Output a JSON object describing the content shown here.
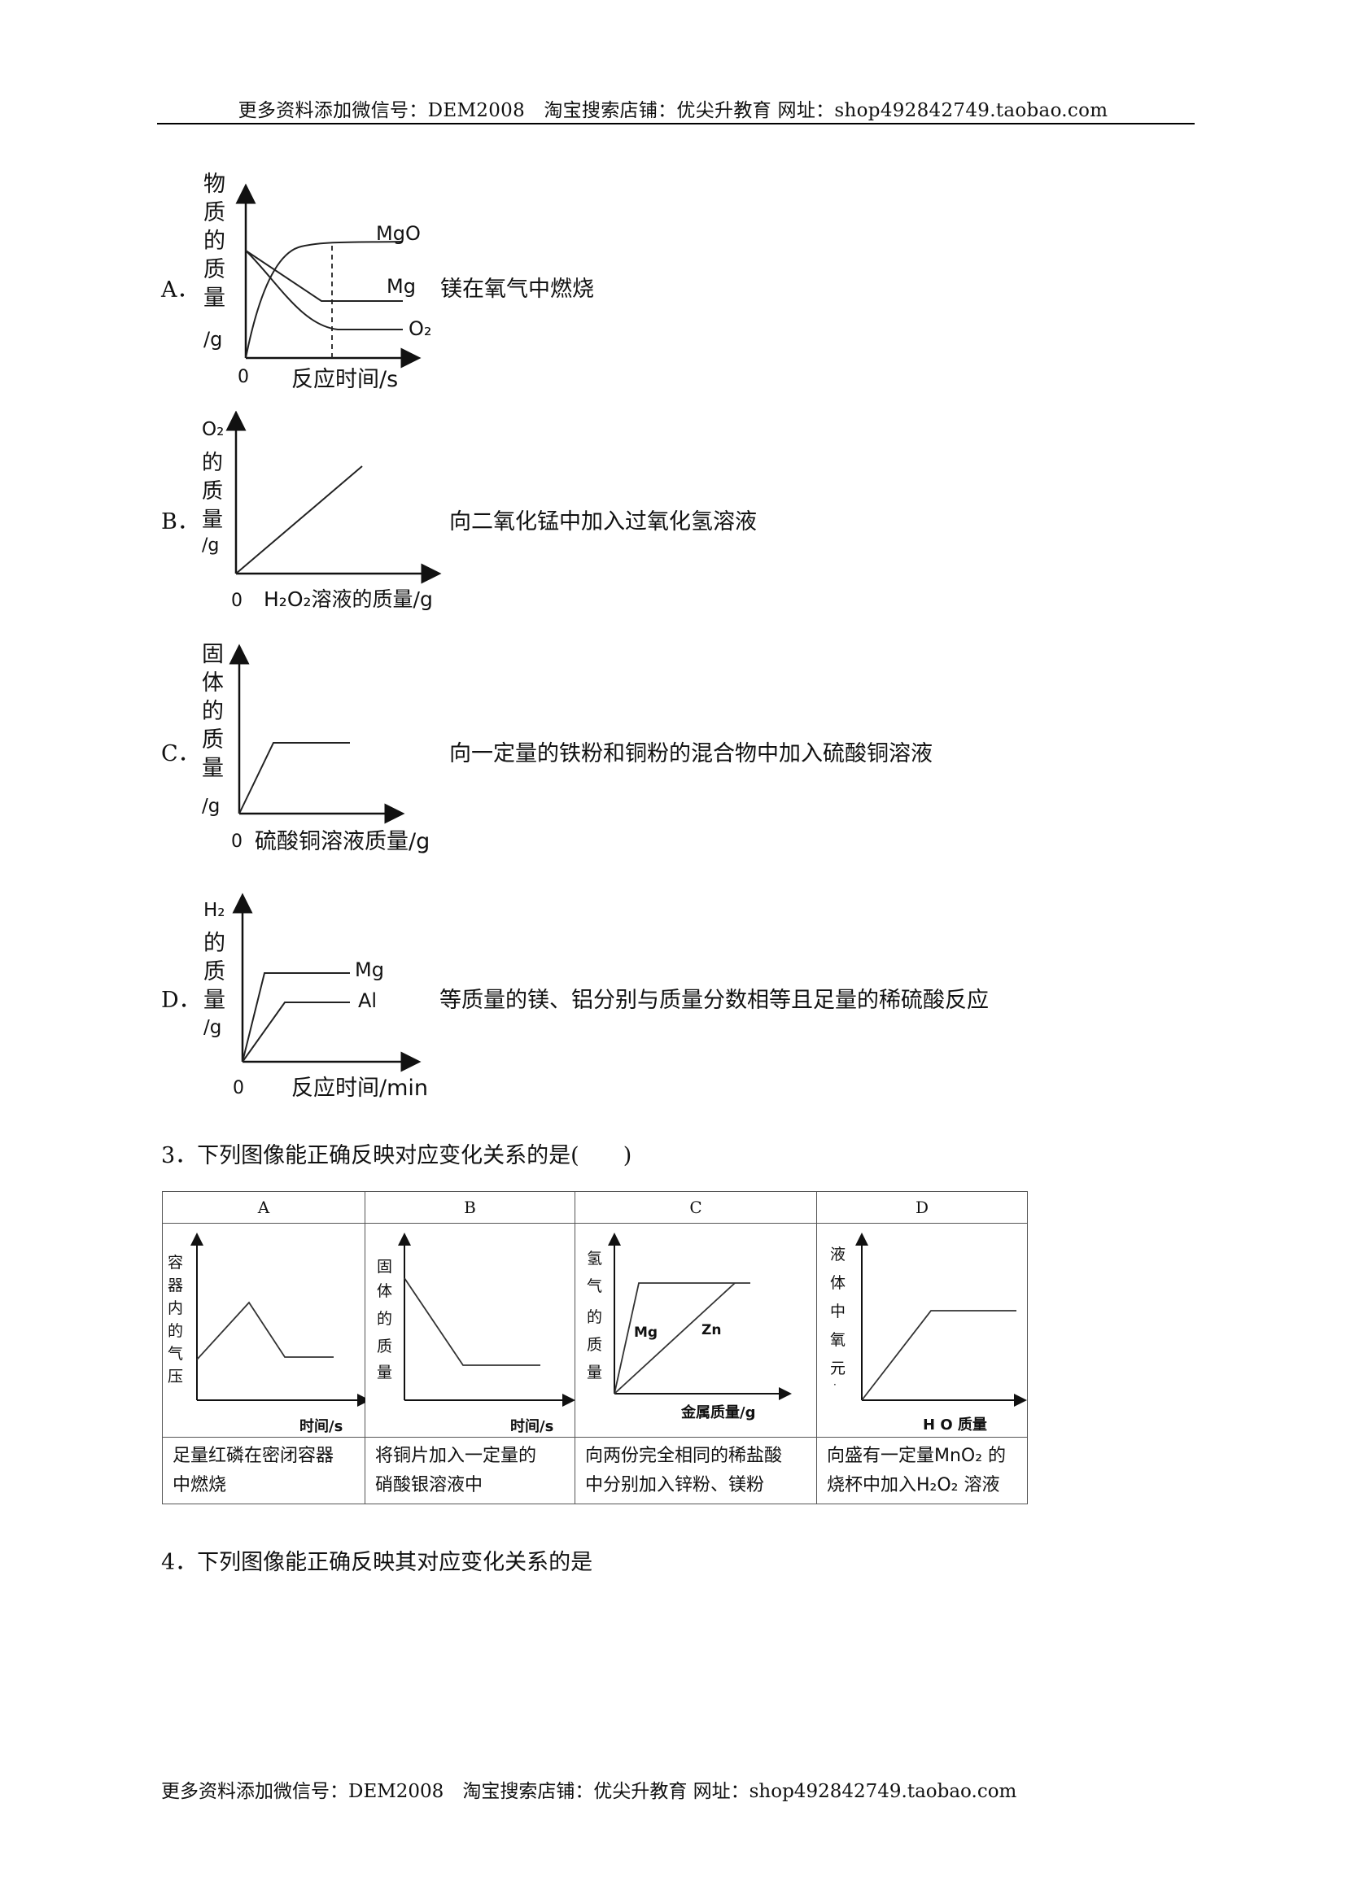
{
  "header": {
    "text": "更多资料添加微信号：DEM2008　淘宝搜索店铺：优尖升教育  网址：shop492842749.taobao.com"
  },
  "footer": {
    "text": "更多资料添加微信号：DEM2008　淘宝搜索店铺：优尖升教育  网址：shop492842749.taobao.com"
  },
  "options": [
    {
      "label": "A．",
      "desc": "镁在氧气中燃烧",
      "graph": {
        "ylabel": [
          "物",
          "质",
          "的",
          "质",
          "量",
          "/g"
        ],
        "xlabel": "反应时间/s",
        "origin": "0",
        "curves": [
          "MgO",
          "Mg",
          "O₂"
        ]
      }
    },
    {
      "label": "B．",
      "desc": "向二氧化锰中加入过氧化氢溶液",
      "graph": {
        "ylabel": [
          "O₂",
          "的",
          "质",
          "量",
          "/g"
        ],
        "xlabel": "H₂O₂溶液的质量/g",
        "origin": "0"
      }
    },
    {
      "label": "C．",
      "desc": "向一定量的铁粉和铜粉的混合物中加入硫酸铜溶液",
      "graph": {
        "ylabel": [
          "固",
          "体",
          "的",
          "质",
          "量",
          "/g"
        ],
        "xlabel": "硫酸铜溶液质量/g",
        "origin": "0"
      }
    },
    {
      "label": "D．",
      "desc": "等质量的镁、铝分别与质量分数相等且足量的稀硫酸反应",
      "graph": {
        "ylabel": [
          "H₂",
          "的",
          "质",
          "量",
          "/g"
        ],
        "xlabel": "反应时间/min",
        "origin": "0",
        "curves": [
          "Mg",
          "Al"
        ]
      }
    }
  ],
  "q3": {
    "text": "3．下列图像能正确反映对应变化关系的是(　　)",
    "cells": [
      {
        "head": "A",
        "ylabel": [
          "容",
          "器",
          "内",
          "的",
          "气",
          "压"
        ],
        "xlabel": "时间/s",
        "caption1": "足量红磷在密闭容器",
        "caption2": "中燃烧"
      },
      {
        "head": "B",
        "ylabel": [
          "固",
          "体",
          "的",
          "质",
          "量"
        ],
        "xlabel": "时间/s",
        "caption1": "将铜片加入一定量的",
        "caption2": "硝酸银溶液中"
      },
      {
        "head": "C",
        "ylabel": [
          "氢",
          "气",
          "的",
          "质",
          "量"
        ],
        "xlabel": "金属质量/g",
        "caption1": "向两份完全相同的稀盐酸",
        "caption2": "中分别加入锌粉、镁粉",
        "curves": [
          "Mg",
          "Zn"
        ]
      },
      {
        "head": "D",
        "ylabel": [
          "液",
          "体",
          "中",
          "氧",
          "元",
          "·"
        ],
        "xlabel": "H O  质量",
        "caption1": "向盛有一定量MnO₂ 的",
        "caption2": "烧杯中加入H₂O₂ 溶液"
      }
    ]
  },
  "q4": {
    "text": "4．下列图像能正确反映其对应变化关系的是"
  }
}
